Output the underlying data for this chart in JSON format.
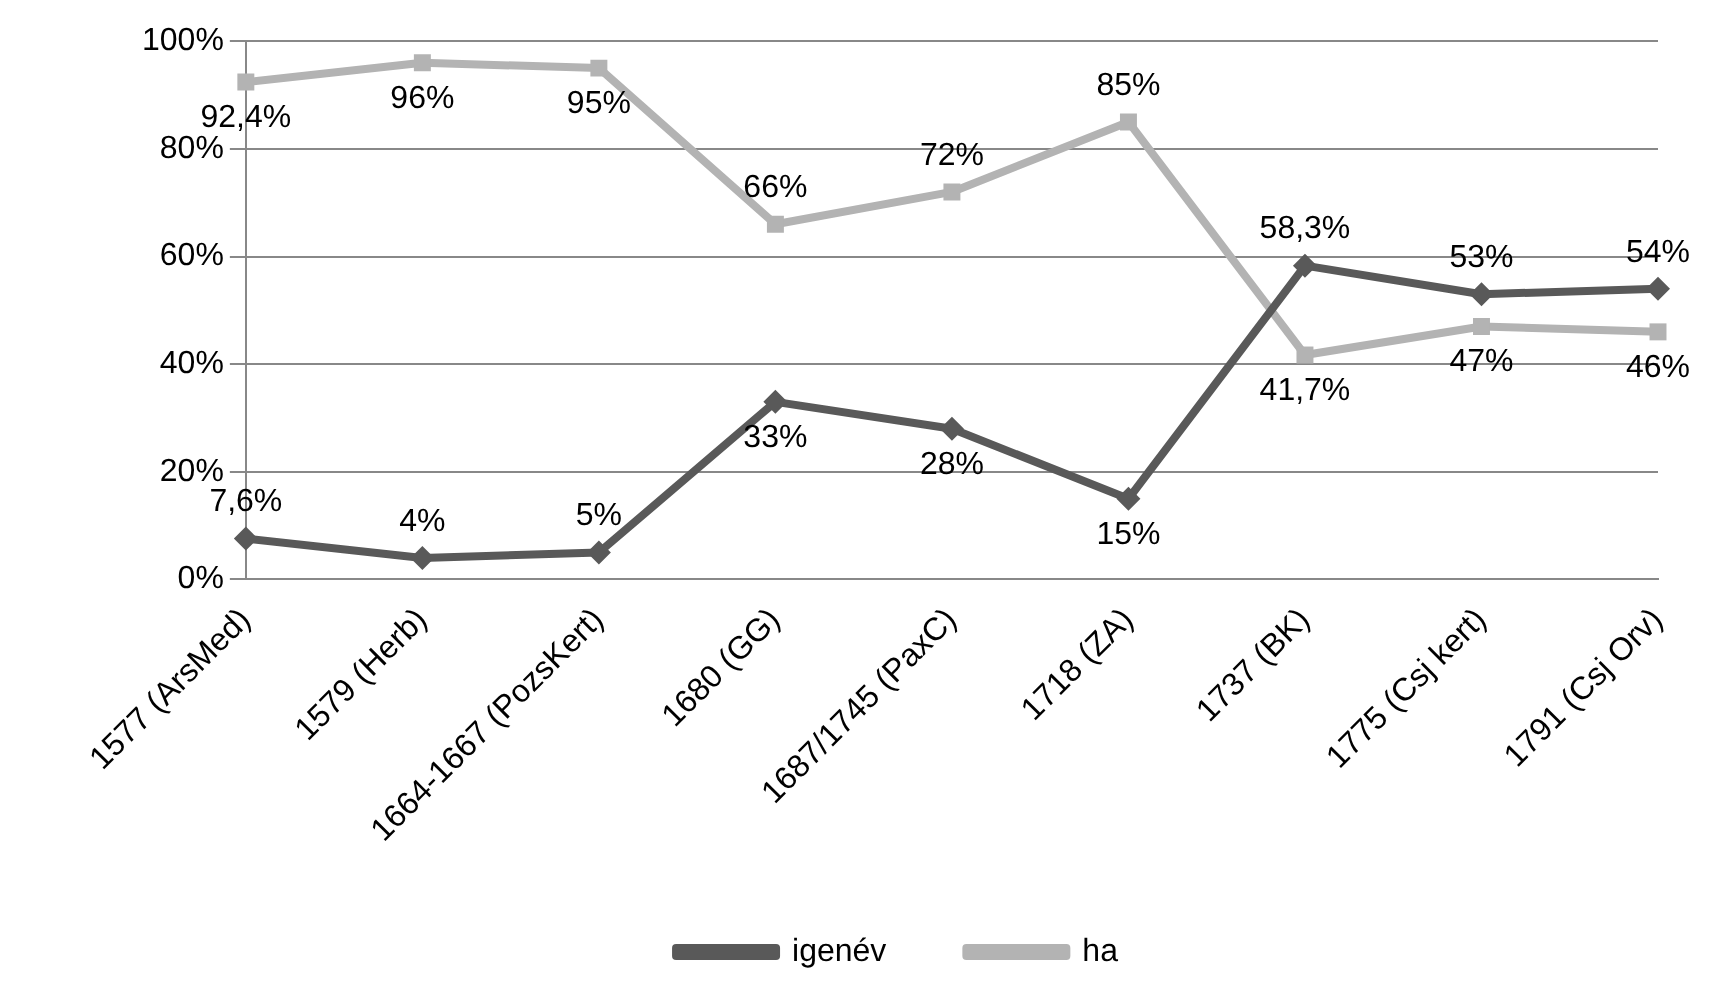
{
  "chart_data": {
    "type": "line",
    "categories": [
      "1577 (ArsMed)",
      "1579 (Herb)",
      "1664-1667 (PozsKert)",
      "1680 (GG)",
      "1687/1745 (PaxC)",
      "1718 (ZA)",
      "1737 (BK)",
      "1775 (Csj kert)",
      "1791 (Csj Orv)"
    ],
    "series": [
      {
        "name": "igenév",
        "color": "#595959",
        "marker": "diamond",
        "values": [
          7.6,
          4,
          5,
          33,
          28,
          15,
          58.3,
          53,
          54
        ],
        "value_labels": [
          "7,6%",
          "4%",
          "5%",
          "33%",
          "28%",
          "15%",
          "58,3%",
          "53%",
          "54%"
        ]
      },
      {
        "name": "ha",
        "color": "#b3b3b3",
        "marker": "square",
        "values": [
          92.4,
          96,
          95,
          66,
          72,
          85,
          41.7,
          47,
          46
        ],
        "value_labels": [
          "92,4%",
          "96%",
          "95%",
          "66%",
          "72%",
          "85%",
          "41,7%",
          "47%",
          "46%"
        ]
      }
    ],
    "ylim": [
      0,
      100
    ],
    "yticks": [
      {
        "value": 0,
        "label": "0%"
      },
      {
        "value": 20,
        "label": "20%"
      },
      {
        "value": 40,
        "label": "40%"
      },
      {
        "value": 60,
        "label": "60%"
      },
      {
        "value": 80,
        "label": "80%"
      },
      {
        "value": 100,
        "label": "100%"
      }
    ],
    "grid": "y",
    "legend": "bottom",
    "line_style": "solid"
  }
}
